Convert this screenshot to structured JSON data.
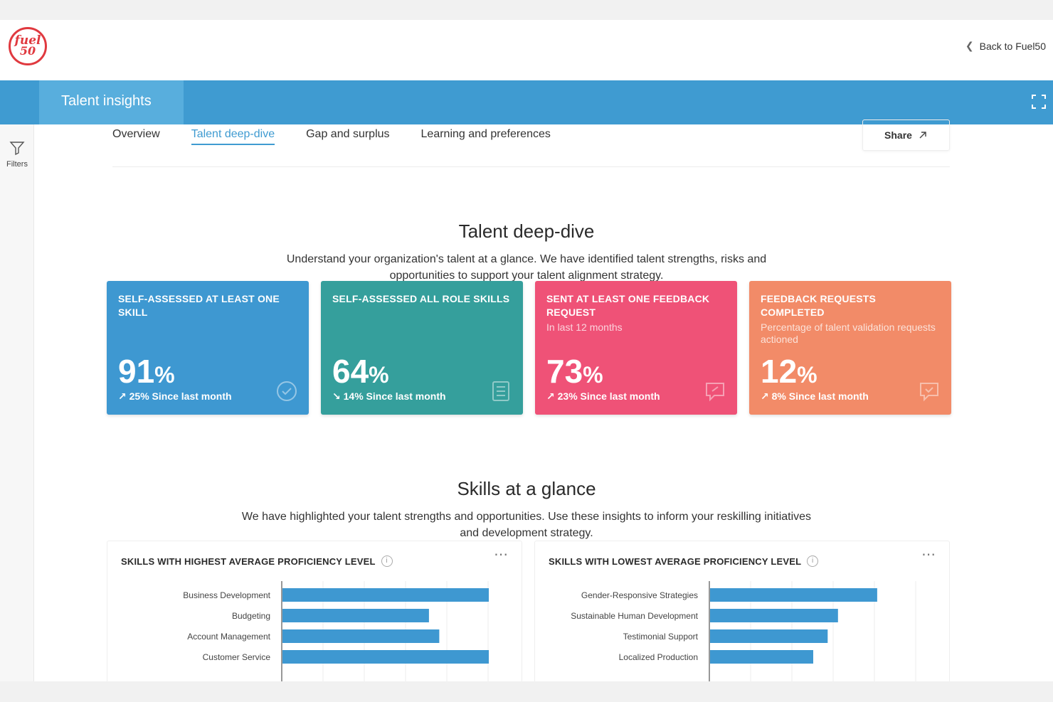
{
  "header": {
    "logo_line1": "fuel",
    "logo_line2": "50",
    "back_label": "Back to Fuel50"
  },
  "banner": {
    "title": "Talent insights"
  },
  "sidebar": {
    "filters_label": "Filters"
  },
  "tabs": [
    {
      "label": "Overview",
      "active": false
    },
    {
      "label": "Talent deep-dive",
      "active": true
    },
    {
      "label": "Gap and surplus",
      "active": false
    },
    {
      "label": "Learning and preferences",
      "active": false
    }
  ],
  "share": {
    "label": "Share"
  },
  "section1": {
    "title": "Talent deep-dive",
    "description": "Understand your organization's talent at a glance. We have identified talent strengths, risks and opportunities to support your talent alignment strategy."
  },
  "cards": [
    {
      "title": "SELF-ASSESSED AT LEAST ONE SKILL",
      "subtitle": "",
      "value": "91",
      "unit": "%",
      "trend": "25% Since last month",
      "trend_dir": "up",
      "icon": "check-circle-icon",
      "color": "#3e98d1"
    },
    {
      "title": "SELF-ASSESSED ALL ROLE  SKILLS",
      "subtitle": "",
      "value": "64",
      "unit": "%",
      "trend": "14% Since last month",
      "trend_dir": "down",
      "icon": "checklist-icon",
      "color": "#359f9c"
    },
    {
      "title": "SENT AT LEAST ONE FEEDBACK REQUEST",
      "subtitle": "In last 12 months",
      "value": "73",
      "unit": "%",
      "trend": "23% Since last month",
      "trend_dir": "up",
      "icon": "feedback-icon",
      "color": "#ef5277"
    },
    {
      "title": "FEEDBACK REQUESTS COMPLETED",
      "subtitle": "Percentage of talent validation requests actioned",
      "value": "12",
      "unit": "%",
      "trend": "8% Since last month",
      "trend_dir": "up",
      "icon": "message-check-icon",
      "color": "#f28b68"
    }
  ],
  "section2": {
    "title": "Skills at a glance",
    "description": "We have highlighted your talent strengths and opportunities. Use these insights to inform your reskilling initiatives and development strategy."
  },
  "chart_data": [
    {
      "type": "bar",
      "orientation": "horizontal",
      "title": "SKILLS WITH HIGHEST AVERAGE PROFICIENCY LEVEL",
      "categories": [
        "Business Development",
        "Budgeting",
        "Account Management",
        "Customer Service"
      ],
      "values": [
        1.0,
        0.71,
        0.76,
        1.0
      ],
      "xlim": [
        0,
        1
      ],
      "color": "#3e98d1",
      "grid": true
    },
    {
      "type": "bar",
      "orientation": "horizontal",
      "title": "SKILLS WITH LOWEST AVERAGE PROFICIENCY LEVEL",
      "categories": [
        "Gender-Responsive Strategies",
        "Sustainable Human Development",
        "Testimonial Support",
        "Localized Production"
      ],
      "values": [
        0.81,
        0.62,
        0.57,
        0.5
      ],
      "xlim": [
        0,
        1
      ],
      "color": "#3e98d1",
      "grid": true
    }
  ]
}
